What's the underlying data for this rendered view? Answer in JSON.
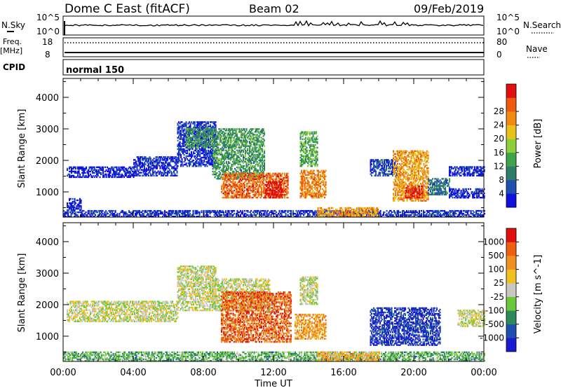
{
  "header": {
    "station": "Dome C East (fitACF)",
    "beam": "Beam 02",
    "date": "09/Feb/2019"
  },
  "status_panels": {
    "nsky_label": "N.Sky",
    "nsky_ticks": [
      "10^5",
      "10^0"
    ],
    "nsearch_label": "N.Search",
    "nsearch_ticks": [
      "10^5",
      "10^0"
    ],
    "freq_label": "Freq.",
    "freq_unit": "[MHz]",
    "freq_ticks": [
      "18",
      "8"
    ],
    "nave_label": "Nave",
    "nave_ticks": [
      "80",
      "0"
    ],
    "cpid_label": "CPID",
    "cpid_value": "normal 150"
  },
  "chart_data": [
    {
      "type": "heatmap",
      "name": "power",
      "ylabel": "Slant Range [km]",
      "ylim": [
        200,
        4600
      ],
      "yticks": [
        1000,
        2000,
        3000,
        4000
      ],
      "xlim": [
        0,
        24
      ],
      "colorbar": {
        "label": "Power [dB]",
        "ticks": [
          "4",
          "8",
          "12",
          "16",
          "20",
          "24",
          "28"
        ],
        "colors": [
          "#1010e0",
          "#1f4fb0",
          "#2e7d6a",
          "#3fa34a",
          "#8ccf3a",
          "#e6c21a",
          "#f08a10",
          "#ee5a10",
          "#e01010"
        ]
      },
      "regions": [
        {
          "t0": 0.2,
          "t1": 4.0,
          "r0": 1450,
          "r1": 1800,
          "v": 0.05
        },
        {
          "t0": 4.0,
          "t1": 6.5,
          "r0": 1500,
          "r1": 2100,
          "v": 0.08
        },
        {
          "t0": 6.5,
          "t1": 8.7,
          "r0": 1800,
          "r1": 3200,
          "v": 0.1
        },
        {
          "t0": 7.0,
          "t1": 8.5,
          "r0": 2400,
          "r1": 3000,
          "v": 0.35
        },
        {
          "t0": 8.5,
          "t1": 11.5,
          "r0": 1400,
          "r1": 3000,
          "v": 0.35
        },
        {
          "t0": 9.0,
          "t1": 12.8,
          "r0": 800,
          "r1": 1600,
          "v": 0.8
        },
        {
          "t0": 11.5,
          "t1": 12.5,
          "r0": 800,
          "r1": 1300,
          "v": 1.0
        },
        {
          "t0": 13.5,
          "t1": 15.0,
          "r0": 800,
          "r1": 1700,
          "v": 0.75
        },
        {
          "t0": 13.5,
          "t1": 14.5,
          "r0": 1800,
          "r1": 2900,
          "v": 0.4
        },
        {
          "t0": 17.5,
          "t1": 19.0,
          "r0": 1500,
          "r1": 2000,
          "v": 0.15
        },
        {
          "t0": 18.8,
          "t1": 20.8,
          "r0": 700,
          "r1": 2300,
          "v": 0.7
        },
        {
          "t0": 19.5,
          "t1": 20.5,
          "r0": 800,
          "r1": 1200,
          "v": 0.95
        },
        {
          "t0": 20.8,
          "t1": 22.0,
          "r0": 900,
          "r1": 1400,
          "v": 0.25
        },
        {
          "t0": 22.0,
          "t1": 24.0,
          "r0": 1500,
          "r1": 1800,
          "v": 0.05
        },
        {
          "t0": 22.0,
          "t1": 24.0,
          "r0": 800,
          "r1": 1100,
          "v": 0.05
        },
        {
          "t0": 0.2,
          "t1": 1.0,
          "r0": 400,
          "r1": 800,
          "v": 0.05
        },
        {
          "t0": 0.0,
          "t1": 24.0,
          "r0": 200,
          "r1": 400,
          "v": 0.1
        },
        {
          "t0": 14.5,
          "t1": 18.0,
          "r0": 200,
          "r1": 500,
          "v": 0.7
        }
      ]
    },
    {
      "type": "heatmap",
      "name": "velocity",
      "ylabel": "Slant Range [km]",
      "ylim": [
        200,
        4600
      ],
      "yticks": [
        1000,
        2000,
        3000,
        4000
      ],
      "xlim": [
        0,
        24
      ],
      "xticks": [
        "00:00",
        "04:00",
        "08:00",
        "12:00",
        "16:00",
        "20:00",
        "00:00"
      ],
      "xlabel": "Time UT",
      "colorbar": {
        "label": "Velocity [m s^-1]",
        "ticks": [
          "1000",
          "500",
          "100",
          "25",
          "-25",
          "-100",
          "-500",
          "-1000"
        ],
        "colors": [
          "#1a1ad0",
          "#1e4fb0",
          "#2e8a5a",
          "#6ac83a",
          "#c8c8c0",
          "#f0c020",
          "#f09020",
          "#ee6010",
          "#e01010"
        ]
      },
      "regions": [
        {
          "t0": 0.2,
          "t1": 6.5,
          "r0": 1450,
          "r1": 2100,
          "v": 0.5
        },
        {
          "t0": 6.5,
          "t1": 8.7,
          "r0": 1800,
          "r1": 3200,
          "v": 0.5
        },
        {
          "t0": 8.5,
          "t1": 11.8,
          "r0": 1800,
          "r1": 2800,
          "v": 0.5
        },
        {
          "t0": 9.0,
          "t1": 13.0,
          "r0": 800,
          "r1": 2400,
          "v": 0.82
        },
        {
          "t0": 13.2,
          "t1": 15.0,
          "r0": 900,
          "r1": 1700,
          "v": 0.7
        },
        {
          "t0": 13.5,
          "t1": 14.5,
          "r0": 2000,
          "r1": 2900,
          "v": 0.5
        },
        {
          "t0": 17.5,
          "t1": 21.5,
          "r0": 700,
          "r1": 1900,
          "v": 0.1
        },
        {
          "t0": 22.5,
          "t1": 24.0,
          "r0": 1300,
          "r1": 1800,
          "v": 0.5
        },
        {
          "t0": 0.0,
          "t1": 24.0,
          "r0": 200,
          "r1": 500,
          "v": 0.35
        },
        {
          "t0": 14.5,
          "t1": 18.0,
          "r0": 200,
          "r1": 500,
          "v": 0.65
        }
      ]
    }
  ]
}
